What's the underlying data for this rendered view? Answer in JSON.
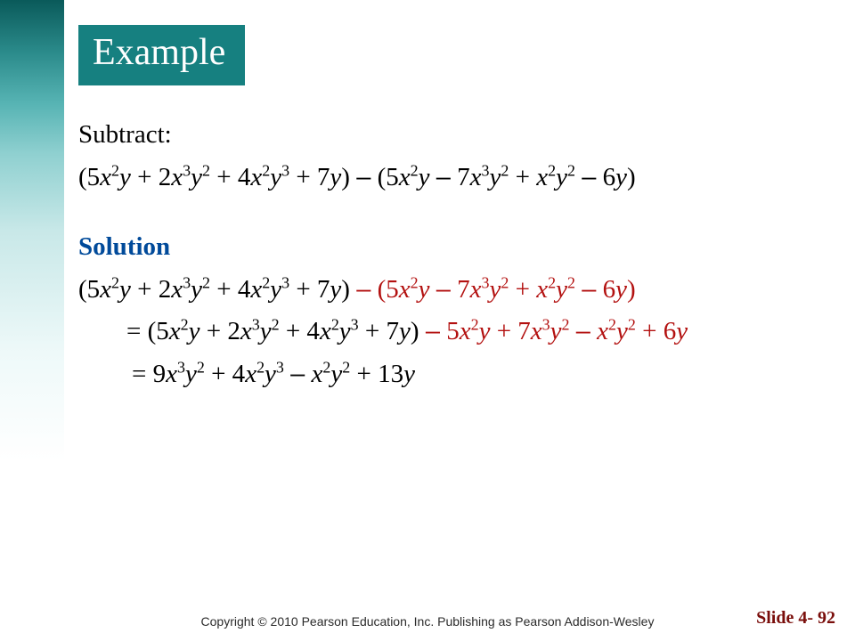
{
  "colors": {
    "title_bg": "#168080",
    "title_text": "#ffffff",
    "body_text": "#000000",
    "solution_label": "#004a9a",
    "highlight_red": "#b31110",
    "footer_slide": "#7a0e0b",
    "footer_copy": "#2a2a2a",
    "left_panel_gradient": [
      "#0a5a5a",
      "#2a8a8a",
      "#56b3b3",
      "#8fd0d0",
      "#c8e8e8",
      "#eef9f9",
      "#ffffff"
    ]
  },
  "typography": {
    "title_fontsize": 42,
    "body_fontsize": 29,
    "footer_copy_fontsize": 14,
    "footer_slide_fontsize": 20,
    "body_font": "Times New Roman",
    "footer_font": "Arial"
  },
  "title": "Example",
  "problem": {
    "label": "Subtract:",
    "expression": {
      "lhs_terms": [
        {
          "coef": "5",
          "vars": [
            [
              "x",
              2
            ],
            [
              "y",
              1
            ]
          ]
        },
        {
          "op": "+",
          "coef": "2",
          "vars": [
            [
              "x",
              3
            ],
            [
              "y",
              2
            ]
          ]
        },
        {
          "op": "+",
          "coef": "4",
          "vars": [
            [
              "x",
              2
            ],
            [
              "y",
              3
            ]
          ]
        },
        {
          "op": "+",
          "coef": "7",
          "vars": [
            [
              "y",
              1
            ]
          ]
        }
      ],
      "rhs_terms": [
        {
          "coef": "5",
          "vars": [
            [
              "x",
              2
            ],
            [
              "y",
              1
            ]
          ]
        },
        {
          "op": "−",
          "coef": "7",
          "vars": [
            [
              "x",
              3
            ],
            [
              "y",
              2
            ]
          ]
        },
        {
          "op": "+",
          "coef": "",
          "vars": [
            [
              "x",
              2
            ],
            [
              "y",
              2
            ]
          ]
        },
        {
          "op": "−",
          "coef": "6",
          "vars": [
            [
              "y",
              1
            ]
          ]
        }
      ],
      "between_op": "−"
    }
  },
  "solution": {
    "label": "Solution",
    "line1": {
      "black_part_terms": [
        {
          "coef": "5",
          "vars": [
            [
              "x",
              2
            ],
            [
              "y",
              1
            ]
          ]
        },
        {
          "op": "+",
          "coef": "2",
          "vars": [
            [
              "x",
              3
            ],
            [
              "y",
              2
            ]
          ]
        },
        {
          "op": "+",
          "coef": "4",
          "vars": [
            [
              "x",
              2
            ],
            [
              "y",
              3
            ]
          ]
        },
        {
          "op": "+",
          "coef": "7",
          "vars": [
            [
              "y",
              1
            ]
          ]
        }
      ],
      "red_part_op": "−",
      "red_part_terms": [
        {
          "coef": "5",
          "vars": [
            [
              "x",
              2
            ],
            [
              "y",
              1
            ]
          ]
        },
        {
          "op": "−",
          "coef": "7",
          "vars": [
            [
              "x",
              3
            ],
            [
              "y",
              2
            ]
          ]
        },
        {
          "op": "+",
          "coef": "",
          "vars": [
            [
              "x",
              2
            ],
            [
              "y",
              2
            ]
          ]
        },
        {
          "op": "−",
          "coef": "6",
          "vars": [
            [
              "y",
              1
            ]
          ]
        }
      ]
    },
    "line2": {
      "prefix": "= ",
      "black_part_terms": [
        {
          "coef": "5",
          "vars": [
            [
              "x",
              2
            ],
            [
              "y",
              1
            ]
          ]
        },
        {
          "op": "+",
          "coef": "2",
          "vars": [
            [
              "x",
              3
            ],
            [
              "y",
              2
            ]
          ]
        },
        {
          "op": "+",
          "coef": "4",
          "vars": [
            [
              "x",
              2
            ],
            [
              "y",
              3
            ]
          ]
        },
        {
          "op": "+",
          "coef": "7",
          "vars": [
            [
              "y",
              1
            ]
          ]
        }
      ],
      "red_distributed_terms": [
        {
          "op": "−",
          "coef": "5",
          "vars": [
            [
              "x",
              2
            ],
            [
              "y",
              1
            ]
          ]
        },
        {
          "op": "+",
          "coef": "7",
          "vars": [
            [
              "x",
              3
            ],
            [
              "y",
              2
            ]
          ]
        },
        {
          "op": "−",
          "coef": "",
          "vars": [
            [
              "x",
              2
            ],
            [
              "y",
              2
            ]
          ]
        },
        {
          "op": "+",
          "coef": "6",
          "vars": [
            [
              "y",
              1
            ]
          ]
        }
      ]
    },
    "line3": {
      "prefix": "=  ",
      "result_terms": [
        {
          "coef": "9",
          "vars": [
            [
              "x",
              3
            ],
            [
              "y",
              2
            ]
          ]
        },
        {
          "op": "+",
          "coef": "4",
          "vars": [
            [
              "x",
              2
            ],
            [
              "y",
              3
            ]
          ]
        },
        {
          "op": "−",
          "coef": "",
          "vars": [
            [
              "x",
              2
            ],
            [
              "y",
              2
            ]
          ]
        },
        {
          "op": "+",
          "coef": "13",
          "vars": [
            [
              "y",
              1
            ]
          ]
        }
      ]
    }
  },
  "footer": {
    "copyright": "Copyright © 2010 Pearson Education, Inc.  Publishing as Pearson Addison-Wesley",
    "slide_label": "Slide 4- 92"
  }
}
